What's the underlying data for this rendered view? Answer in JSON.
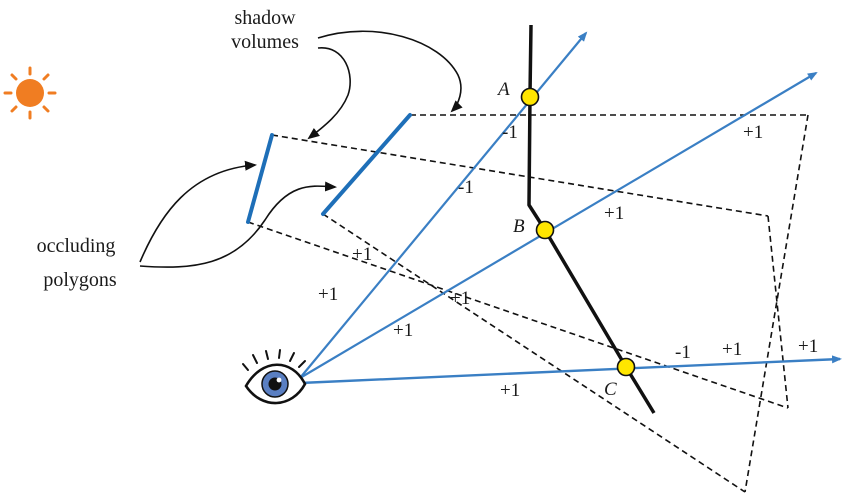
{
  "labels": {
    "shadow_volumes_line1": "shadow",
    "shadow_volumes_line2": "volumes",
    "occluding_line1": "occluding",
    "occluding_line2": "polygons"
  },
  "points": {
    "a": "A",
    "b": "B",
    "c": "C"
  },
  "counts": {
    "a_minus": "-1",
    "ray1_minus": "-1",
    "ray1_plus_a": "+1",
    "ray1_plus_b": "+1",
    "ray2_plus_a": "+1",
    "ray2_plus_b": "+1",
    "ray2_plus_c": "+1",
    "ray2_plus_d": "+1",
    "ray3_plus_a": "+1",
    "ray3_minus": "-1",
    "ray3_plus_b": "+1",
    "ray3_plus_c": "+1"
  },
  "colors": {
    "ray": "#3a7fc4",
    "polygon": "#1e6fb8",
    "surface": "#111111",
    "point_fill": "#ffe600",
    "sun": "#f07d22",
    "eye_iris": "#5a7fc2"
  },
  "icons": {
    "sun": "sun-icon",
    "eye": "eye-icon"
  }
}
